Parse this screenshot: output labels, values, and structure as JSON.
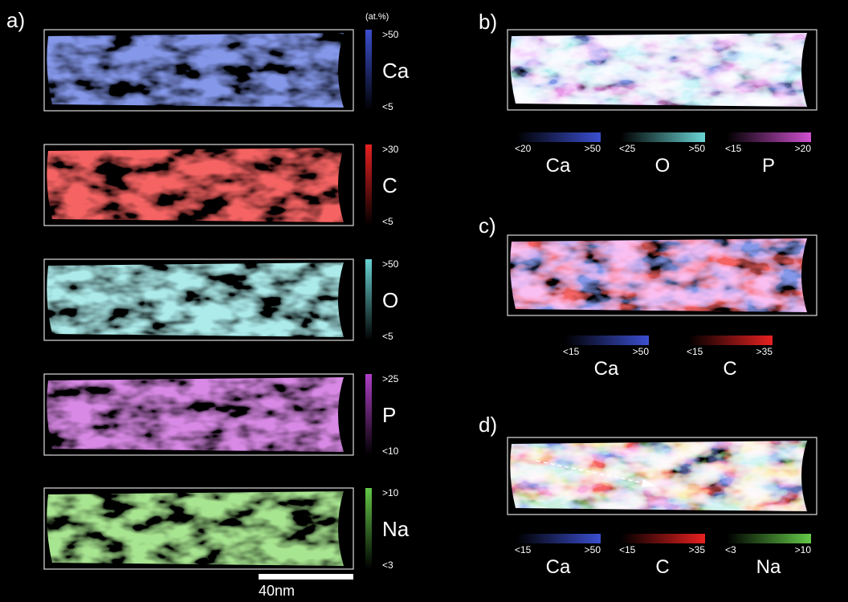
{
  "panel_a": {
    "label": "a)",
    "unit": "(at.%)",
    "maps": [
      {
        "element": "Ca",
        "max": ">50",
        "min": "<5",
        "color": "#3b4fd0"
      },
      {
        "element": "C",
        "max": ">30",
        "min": "<5",
        "color": "#e82020"
      },
      {
        "element": "O",
        "max": ">50",
        "min": "<5",
        "color": "#6ad4d4"
      },
      {
        "element": "P",
        "max": ">25",
        "min": "<10",
        "color": "#b040c8"
      },
      {
        "element": "Na",
        "max": ">10",
        "min": "<3",
        "color": "#64c848"
      }
    ],
    "scale_bar": "40nm"
  },
  "panel_b": {
    "label": "b)",
    "legend": [
      {
        "element": "Ca",
        "min": "<20",
        "max": ">50",
        "color": "#3b4fd0"
      },
      {
        "element": "O",
        "min": "<25",
        "max": ">50",
        "color": "#6ad4d4"
      },
      {
        "element": "P",
        "min": "<15",
        "max": ">20",
        "color": "#d050d0"
      }
    ]
  },
  "panel_c": {
    "label": "c)",
    "legend": [
      {
        "element": "Ca",
        "min": "<15",
        "max": ">50",
        "color": "#3b4fd0"
      },
      {
        "element": "C",
        "min": "<15",
        "max": ">35",
        "color": "#e82020"
      }
    ]
  },
  "panel_d": {
    "label": "d)",
    "legend": [
      {
        "element": "Ca",
        "min": "<15",
        "max": ">50",
        "color": "#3b4fd0"
      },
      {
        "element": "C",
        "min": "<15",
        "max": ">35",
        "color": "#e82020"
      },
      {
        "element": "Na",
        "min": "<3",
        "max": ">10",
        "color": "#64c848"
      }
    ]
  }
}
